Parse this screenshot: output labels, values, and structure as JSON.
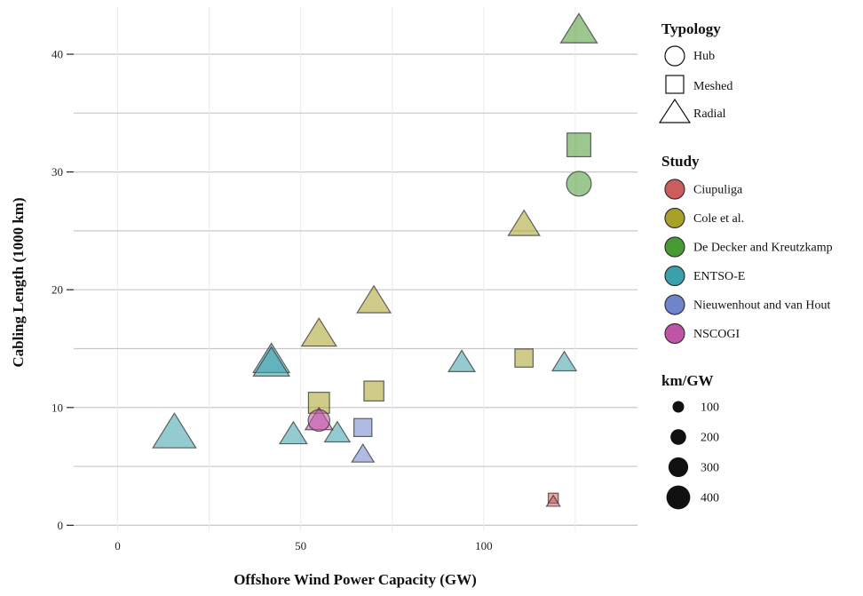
{
  "chart_data": {
    "type": "scatter",
    "xlabel": "Offshore Wind Power Capacity (GW)",
    "ylabel": "Cabling Length (1000 km)",
    "xlim": [
      -12,
      142
    ],
    "ylim": [
      -0.5,
      44
    ],
    "x_ticks": [
      {
        "value": 0,
        "label": "0"
      },
      {
        "value": 50,
        "label": "50"
      },
      {
        "value": 100,
        "label": "100"
      }
    ],
    "y_ticks": [
      {
        "value": 0,
        "label": "0"
      },
      {
        "value": 10,
        "label": "10"
      },
      {
        "value": 20,
        "label": "20"
      },
      {
        "value": 30,
        "label": "30"
      },
      {
        "value": 40,
        "label": "40"
      }
    ],
    "grid": true,
    "legend_position": "right",
    "colors": {
      "Ciupuliga": "#cd5c5c",
      "Cole et al.": "#a8a028",
      "De Decker and Kreutzkamp": "#4a9a34",
      "ENTSO-E": "#3aa0ac",
      "Nieuwenhout and van Hout": "#6e84cc",
      "NSCOGI": "#c055a8"
    },
    "legends": {
      "typology": {
        "title": "Typology",
        "items": [
          "Hub",
          "Meshed",
          "Radial"
        ]
      },
      "study": {
        "title": "Study",
        "items": [
          "Ciupuliga",
          "Cole et al.",
          "De Decker and Kreutzkamp",
          "ENTSO-E",
          "Nieuwenhout and van Hout",
          "NSCOGI"
        ]
      },
      "size": {
        "title": "km/GW",
        "items": [
          {
            "value": 100,
            "label": "100"
          },
          {
            "value": 200,
            "label": "200"
          },
          {
            "value": 300,
            "label": "300"
          },
          {
            "value": 400,
            "label": "400"
          }
        ]
      }
    },
    "points": [
      {
        "x": 126,
        "y": 42,
        "study": "De Decker and Kreutzkamp",
        "typology": "Radial",
        "km_per_gw": 333
      },
      {
        "x": 126,
        "y": 32.3,
        "study": "De Decker and Kreutzkamp",
        "typology": "Meshed",
        "km_per_gw": 256
      },
      {
        "x": 126,
        "y": 29,
        "study": "De Decker and Kreutzkamp",
        "typology": "Hub",
        "km_per_gw": 230
      },
      {
        "x": 111,
        "y": 25.5,
        "study": "Cole et al.",
        "typology": "Radial",
        "km_per_gw": 230
      },
      {
        "x": 70,
        "y": 19,
        "study": "Cole et al.",
        "typology": "Radial",
        "km_per_gw": 271
      },
      {
        "x": 55,
        "y": 16.2,
        "study": "Cole et al.",
        "typology": "Radial",
        "km_per_gw": 295
      },
      {
        "x": 111,
        "y": 14.2,
        "study": "Cole et al.",
        "typology": "Meshed",
        "km_per_gw": 128
      },
      {
        "x": 70,
        "y": 11.4,
        "study": "Cole et al.",
        "typology": "Meshed",
        "km_per_gw": 163
      },
      {
        "x": 55,
        "y": 10.4,
        "study": "Cole et al.",
        "typology": "Meshed",
        "km_per_gw": 189
      },
      {
        "x": 42,
        "y": 14,
        "study": "ENTSO-E",
        "typology": "Radial",
        "km_per_gw": 333
      },
      {
        "x": 42,
        "y": 13.7,
        "study": "ENTSO-E",
        "typology": "Radial",
        "km_per_gw": 326
      },
      {
        "x": 15.5,
        "y": 7.8,
        "study": "ENTSO-E",
        "typology": "Radial",
        "km_per_gw": 500
      },
      {
        "x": 48,
        "y": 7.7,
        "study": "ENTSO-E",
        "typology": "Radial",
        "km_per_gw": 160
      },
      {
        "x": 60,
        "y": 7.8,
        "study": "ENTSO-E",
        "typology": "Radial",
        "km_per_gw": 130
      },
      {
        "x": 94,
        "y": 13.8,
        "study": "ENTSO-E",
        "typology": "Radial",
        "km_per_gw": 147
      },
      {
        "x": 122,
        "y": 13.8,
        "study": "ENTSO-E",
        "typology": "Radial",
        "km_per_gw": 113
      },
      {
        "x": 67,
        "y": 8.3,
        "study": "Nieuwenhout and van Hout",
        "typology": "Meshed",
        "km_per_gw": 124
      },
      {
        "x": 67,
        "y": 6,
        "study": "Nieuwenhout and van Hout",
        "typology": "Radial",
        "km_per_gw": 90
      },
      {
        "x": 55,
        "y": 8.9,
        "study": "NSCOGI",
        "typology": "Radial",
        "km_per_gw": 162
      },
      {
        "x": 55,
        "y": 8.9,
        "study": "NSCOGI",
        "typology": "Hub",
        "km_per_gw": 162
      },
      {
        "x": 119,
        "y": 2.3,
        "study": "Ciupuliga",
        "typology": "Meshed",
        "km_per_gw": 19
      },
      {
        "x": 119,
        "y": 2,
        "study": "Ciupuliga",
        "typology": "Radial",
        "km_per_gw": 17
      }
    ]
  }
}
